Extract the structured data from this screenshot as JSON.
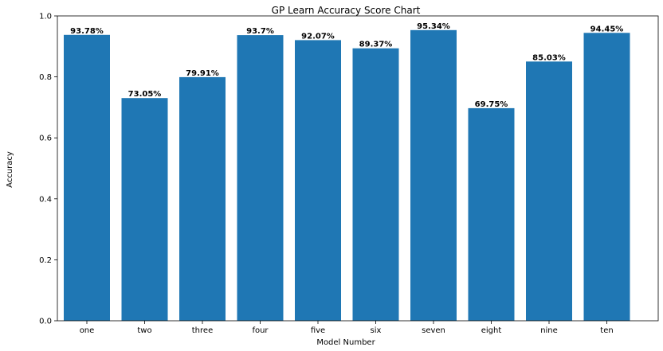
{
  "chart_data": {
    "type": "bar",
    "title": "GP Learn Accuracy Score Chart",
    "xlabel": "Model Number",
    "ylabel": "Accuracy",
    "categories": [
      "one",
      "two",
      "three",
      "four",
      "five",
      "six",
      "seven",
      "eight",
      "nine",
      "ten"
    ],
    "values": [
      0.9378,
      0.7305,
      0.7991,
      0.937,
      0.9207,
      0.8937,
      0.9534,
      0.6975,
      0.8503,
      0.9445
    ],
    "data_labels": [
      "93.78%",
      "73.05%",
      "79.91%",
      "93.7%",
      "92.07%",
      "89.37%",
      "95.34%",
      "69.75%",
      "85.03%",
      "94.45%"
    ],
    "ylim": [
      0,
      1.0
    ],
    "yticks": [
      0.0,
      0.2,
      0.4,
      0.6,
      0.8,
      1.0
    ],
    "ytick_labels": [
      "0.0",
      "0.2",
      "0.4",
      "0.6",
      "0.8",
      "1.0"
    ],
    "bar_color": "#1f77b4",
    "grid": false,
    "legend": "none"
  }
}
